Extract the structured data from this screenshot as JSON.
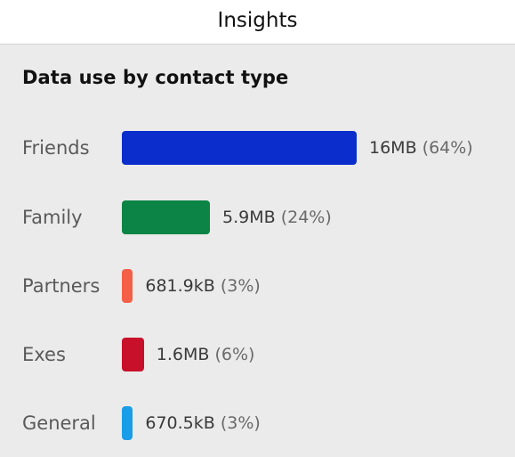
{
  "header": {
    "title": "Insights"
  },
  "section": {
    "title": "Data use by contact type"
  },
  "chart_data": {
    "type": "bar",
    "title": "Data use by contact type",
    "categories": [
      "Friends",
      "Family",
      "Partners",
      "Exes",
      "General"
    ],
    "values_display": [
      "16MB",
      "5.9MB",
      "681.9kB",
      "1.6MB",
      "670.5kB"
    ],
    "percent_display": [
      "(64%)",
      "(24%)",
      "(3%)",
      "(6%)",
      "(3%)"
    ],
    "percent_values": [
      64,
      24,
      3,
      6,
      3
    ],
    "colors": [
      "#0a2dcb",
      "#0b8445",
      "#f45f48",
      "#c8102a",
      "#1a9de8"
    ]
  }
}
